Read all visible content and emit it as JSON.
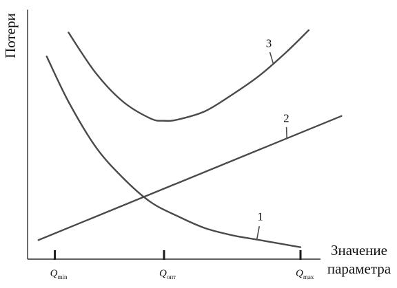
{
  "chart_data": {
    "type": "line",
    "title": "",
    "ylabel": "Потери",
    "xlabel_lines": [
      "Значение",
      "параметра"
    ],
    "x_ticks": [
      {
        "main": "Q",
        "sub": "min",
        "x": 0.1
      },
      {
        "main": "Q",
        "sub": "опт",
        "x": 0.5
      },
      {
        "main": "Q",
        "sub": "max",
        "x": 1.0
      }
    ],
    "xlim": [
      0,
      1.05
    ],
    "ylim": [
      0,
      1
    ],
    "grid": false,
    "legend": "none",
    "series": [
      {
        "name": "1",
        "x": [
          0.07,
          0.15,
          0.25,
          0.35,
          0.45,
          0.55,
          0.65,
          0.75,
          0.85,
          0.95,
          1.0
        ],
        "y": [
          0.85,
          0.66,
          0.47,
          0.34,
          0.24,
          0.18,
          0.13,
          0.1,
          0.08,
          0.06,
          0.05
        ]
      },
      {
        "name": "2",
        "x": [
          0.04,
          1.15
        ],
        "y": [
          0.08,
          0.6
        ]
      },
      {
        "name": "3",
        "x": [
          0.15,
          0.25,
          0.35,
          0.45,
          0.5,
          0.55,
          0.65,
          0.75,
          0.85,
          0.95,
          1.03
        ],
        "y": [
          0.95,
          0.78,
          0.66,
          0.59,
          0.58,
          0.585,
          0.62,
          0.69,
          0.77,
          0.87,
          0.96
        ]
      }
    ]
  }
}
